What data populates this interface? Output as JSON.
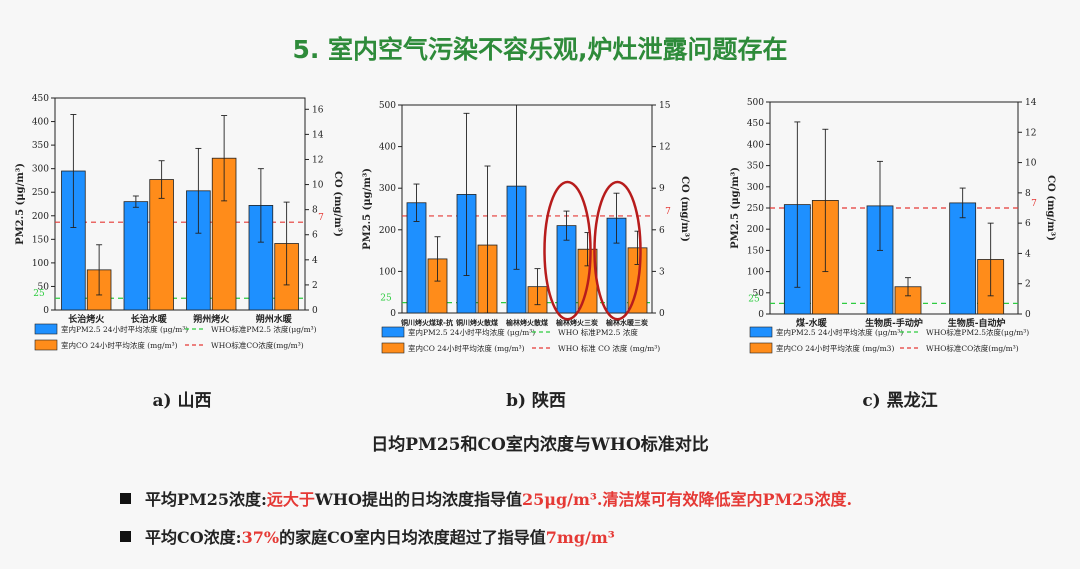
{
  "title": "5. 室内空气污染不容乐观,炉灶泄露问题存在",
  "colors": {
    "pm": "#1e90ff",
    "co": "#ff8c1a",
    "who_pm": "#2ecc40",
    "who_co": "#e53935",
    "highlight": "#b71c1c",
    "title": "#2e8b3a"
  },
  "chart_data": [
    {
      "type": "bar",
      "caption": "a)  山西",
      "categories": [
        "长治烤火",
        "长治水暖",
        "朔州烤火",
        "朔州水暖"
      ],
      "left_axis": {
        "label": "PM2.5 (μg/m³)",
        "range": [
          0,
          450
        ],
        "ticks": [
          0,
          50,
          100,
          150,
          200,
          250,
          300,
          350,
          400,
          450
        ]
      },
      "right_axis": {
        "label": "CO (mg/m³)",
        "range": [
          0,
          16.9
        ],
        "ticks": [
          0,
          2,
          4,
          6,
          8,
          10,
          12,
          14,
          16
        ]
      },
      "series": [
        {
          "name": "室内PM2.5 24小时平均浓度 (μg/m³)",
          "axis": "left",
          "values": [
            295,
            230,
            253,
            222
          ],
          "err": [
            120,
            12,
            90,
            78
          ]
        },
        {
          "name": "室内CO 24小时平均浓度 (mg/m³)",
          "axis": "right",
          "values": [
            3.2,
            10.4,
            12.1,
            5.3
          ],
          "err": [
            2.0,
            1.5,
            3.4,
            3.3
          ]
        }
      ],
      "reference_lines": [
        {
          "name": "WHO标准PM2.5 浓度(μg/m³)",
          "axis": "left",
          "value": 25,
          "label": "25"
        },
        {
          "name": "WHO标准CO浓度(mg/m³)",
          "axis": "right",
          "value": 7,
          "label": "7"
        }
      ],
      "highlighted_categories": []
    },
    {
      "type": "bar",
      "caption": "b)  陕西",
      "categories": [
        "铜川烤火煤球-抗",
        "铜川烤火散煤",
        "榆林烤火散煤",
        "榆林烤火三炭",
        "榆林水暖三炭"
      ],
      "left_axis": {
        "label": "PM2.5 (μg/m³)",
        "range": [
          0,
          500
        ],
        "ticks": [
          0,
          100,
          200,
          300,
          400,
          500
        ]
      },
      "right_axis": {
        "label": "CO (mg/m³)",
        "range": [
          0,
          15
        ],
        "ticks": [
          0,
          3,
          6,
          9,
          12,
          15
        ]
      },
      "series": [
        {
          "name": "室内PM2.5 24小时平均浓度 (μg/m³)",
          "axis": "left",
          "values": [
            265,
            285,
            305,
            210,
            228
          ],
          "err": [
            45,
            195,
            200,
            35,
            60
          ]
        },
        {
          "name": "室内CO 24小时平均浓度 (mg/m³)",
          "axis": "right",
          "values": [
            3.9,
            4.9,
            1.9,
            4.6,
            4.7
          ],
          "err": [
            1.6,
            5.7,
            1.3,
            1.2,
            1.2
          ]
        }
      ],
      "reference_lines": [
        {
          "name": "WHO 标准PM2.5 浓度",
          "axis": "left",
          "value": 25,
          "label": "25"
        },
        {
          "name": "WHO 标准 CO 浓度 (mg/m³)",
          "axis": "right",
          "value": 7,
          "label": "7"
        }
      ],
      "highlighted_categories": [
        3,
        4
      ]
    },
    {
      "type": "bar",
      "caption": "c)  黑龙江",
      "categories": [
        "煤-水暖",
        "生物质-手动炉",
        "生物质-自动炉"
      ],
      "left_axis": {
        "label": "PM2.5 (μg/m³)",
        "range": [
          0,
          500
        ],
        "ticks": [
          0,
          50,
          100,
          150,
          200,
          250,
          300,
          350,
          400,
          450,
          500
        ]
      },
      "right_axis": {
        "label": "CO (mg/m³)",
        "range": [
          0,
          14
        ],
        "ticks": [
          0,
          2,
          4,
          6,
          8,
          10,
          12,
          14
        ]
      },
      "series": [
        {
          "name": "室内PM2.5 24小时平均浓度 (μg/m³)",
          "axis": "left",
          "values": [
            258,
            255,
            262
          ],
          "err": [
            195,
            105,
            35
          ]
        },
        {
          "name": "室内CO 24小时平均浓度 (mg/m3)",
          "axis": "right",
          "values": [
            7.5,
            1.8,
            3.6
          ],
          "err": [
            4.7,
            0.6,
            2.4
          ]
        }
      ],
      "reference_lines": [
        {
          "name": "WHO标准PM2.5浓度(μg/m³)",
          "axis": "left",
          "value": 25,
          "label": "25"
        },
        {
          "name": "WHO标准CO浓度(mg/m³)",
          "axis": "right",
          "value": 7,
          "label": "7"
        }
      ],
      "highlighted_categories": []
    }
  ],
  "main_caption": "日均PM25和CO室内浓度与WHO标准对比",
  "bullets": [
    {
      "label": "平均PM25浓度:",
      "highlight": "远大于",
      "text": "WHO提出的日均浓度指导值",
      "highlight2": "25μg/m³.清洁煤可有效降低室内PM25浓度."
    },
    {
      "label": "平均CO浓度:",
      "highlight": "37%",
      "text": "的家庭CO室内日均浓度超过了指导值",
      "highlight2": "7mg/m³"
    }
  ]
}
